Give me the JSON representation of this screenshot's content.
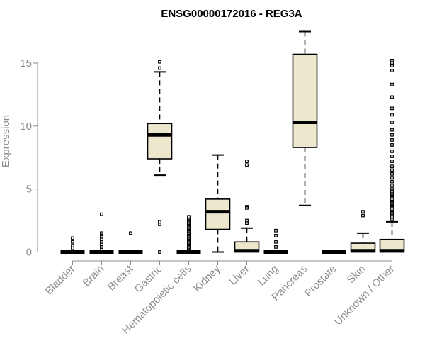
{
  "chart_data": {
    "type": "box",
    "title": "ENSG00000172016 - REG3A",
    "xlabel": "",
    "ylabel": "Expression",
    "ylim": [
      0,
      17.8
    ],
    "yticks": [
      0,
      5,
      10,
      15
    ],
    "grid": false,
    "categories": [
      "Bladder",
      "Brain",
      "Breast",
      "Gastric",
      "Hematopoietic cells",
      "Kidney",
      "Liver",
      "Lung",
      "Pancreas",
      "Prostate",
      "Skin",
      "Unknown / Other"
    ],
    "boxes": [
      {
        "whisker_low": 0,
        "q1": 0,
        "median": 0,
        "q3": 0,
        "whisker_high": 0,
        "outliers": [
          0.3,
          0.5,
          0.8,
          1.1
        ]
      },
      {
        "whisker_low": 0,
        "q1": 0,
        "median": 0,
        "q3": 0,
        "whisker_high": 0,
        "outliers": [
          0.2,
          0.4,
          0.6,
          0.8,
          1.0,
          1.2,
          1.4,
          1.5,
          3.0
        ]
      },
      {
        "whisker_low": 0,
        "q1": 0,
        "median": 0,
        "q3": 0,
        "whisker_high": 0,
        "outliers": [
          1.5
        ]
      },
      {
        "whisker_low": 6.1,
        "q1": 7.4,
        "median": 9.3,
        "q3": 10.2,
        "whisker_high": 14.3,
        "outliers": [
          0.0,
          2.2,
          2.4,
          14.6,
          15.1
        ]
      },
      {
        "whisker_low": 0,
        "q1": 0,
        "median": 0,
        "q3": 0,
        "whisker_high": 0,
        "outliers": [
          0.1,
          0.2,
          0.3,
          0.4,
          0.5,
          0.6,
          0.7,
          0.8,
          0.9,
          1.0,
          1.1,
          1.2,
          1.3,
          1.4,
          1.5,
          1.6,
          1.7,
          1.8,
          1.9,
          2.0,
          2.1,
          2.2,
          2.3,
          2.4,
          2.5,
          2.6,
          2.8
        ]
      },
      {
        "whisker_low": 0,
        "q1": 1.8,
        "median": 3.2,
        "q3": 4.2,
        "whisker_high": 7.7,
        "outliers": []
      },
      {
        "whisker_low": 0,
        "q1": 0,
        "median": 0.1,
        "q3": 0.8,
        "whisker_high": 1.9,
        "outliers": [
          2.3,
          2.5,
          3.5,
          3.6,
          6.9,
          7.2
        ]
      },
      {
        "whisker_low": 0,
        "q1": 0,
        "median": 0,
        "q3": 0,
        "whisker_high": 0,
        "outliers": [
          0.4,
          0.8,
          1.3,
          1.7
        ]
      },
      {
        "whisker_low": 3.7,
        "q1": 8.3,
        "median": 10.3,
        "q3": 15.7,
        "whisker_high": 17.5,
        "outliers": []
      },
      {
        "whisker_low": 0,
        "q1": 0,
        "median": 0,
        "q3": 0,
        "whisker_high": 0,
        "outliers": []
      },
      {
        "whisker_low": 0,
        "q1": 0,
        "median": 0.1,
        "q3": 0.7,
        "whisker_high": 1.5,
        "outliers": [
          2.9,
          3.2
        ]
      },
      {
        "whisker_low": 0,
        "q1": 0,
        "median": 0.1,
        "q3": 1.0,
        "whisker_high": 2.4,
        "outliers": [
          2.6,
          2.8,
          3.0,
          3.1,
          3.2,
          3.4,
          3.6,
          3.7,
          3.8,
          3.9,
          4.0,
          4.2,
          4.4,
          4.5,
          4.6,
          4.8,
          5.0,
          5.3,
          5.6,
          5.9,
          6.2,
          6.5,
          6.8,
          7.2,
          7.6,
          8.0,
          8.5,
          8.9,
          9.3,
          9.7,
          10.3,
          10.9,
          11.4,
          12.3,
          13.3,
          14.4,
          14.8,
          15.0,
          15.2
        ]
      }
    ]
  },
  "colors": {
    "box_fill": "#ede7cd",
    "box_stroke": "#000000",
    "axis_text": "#8c8c8c",
    "axis_line": "#8c8c8c"
  }
}
